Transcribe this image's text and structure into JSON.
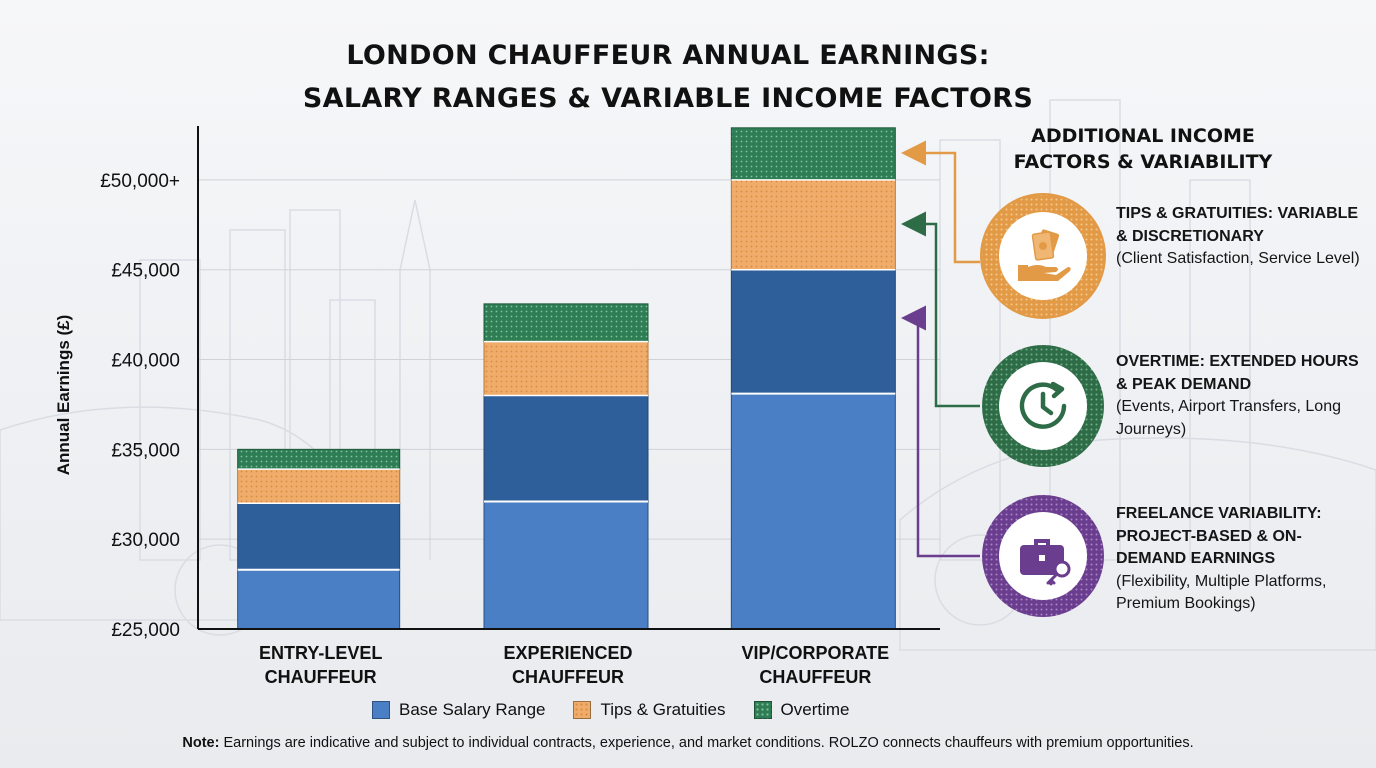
{
  "title_line1": "LONDON CHAUFFEUR ANNUAL EARNINGS:",
  "title_line2": "SALARY RANGES & VARIABLE INCOME FACTORS",
  "colors": {
    "base_light": "#4a7fc6",
    "base_dark": "#2f5f9a",
    "tips": "#efac6a",
    "overtime": "#2e7d55",
    "tips_accent": "#e29a46",
    "overtime_accent": "#2e6b47",
    "freelance_accent": "#6a3d8e"
  },
  "chart_data": {
    "type": "bar",
    "stacked": true,
    "categories": [
      [
        "ENTRY-LEVEL",
        "CHAUFFEUR"
      ],
      [
        "EXPERIENCED",
        "CHAUFFEUR"
      ],
      [
        "VIP/CORPORATE",
        "CHAUFFEUR"
      ]
    ],
    "ylabel": "Annual Earnings (£)",
    "ylim": [
      25000,
      53000
    ],
    "yticks": [
      {
        "value": 25000,
        "label": "£25,000"
      },
      {
        "value": 30000,
        "label": "£30,000"
      },
      {
        "value": 35000,
        "label": "£35,000"
      },
      {
        "value": 40000,
        "label": "£40,000"
      },
      {
        "value": 45000,
        "label": "£45,000"
      },
      {
        "value": 50000,
        "label": "£50,000+"
      }
    ],
    "grid": true,
    "series": [
      {
        "name": "Base Salary Range",
        "low": [
          28300,
          32100,
          38100
        ],
        "high": [
          32000,
          38000,
          45000
        ]
      },
      {
        "name": "Tips & Gratuities",
        "values": [
          1900,
          3000,
          5000
        ]
      },
      {
        "name": "Overtime",
        "values": [
          1100,
          2100,
          2900
        ]
      }
    ],
    "legend_position": "bottom"
  },
  "legend": [
    {
      "label": "Base Salary Range",
      "key": "base"
    },
    {
      "label": "Tips & Gratuities",
      "key": "tips"
    },
    {
      "label": "Overtime",
      "key": "overtime"
    }
  ],
  "side_panel": {
    "title": "ADDITIONAL INCOME FACTORS & VARIABILITY",
    "factors": [
      {
        "heading": "TIPS & GRATUITIES: VARIABLE & DISCRETIONARY",
        "detail": "(Client Satisfaction, Service Level)",
        "icon": "hand-money-icon"
      },
      {
        "heading": "OVERTIME: EXTENDED HOURS & PEAK DEMAND",
        "detail": "(Events, Airport Transfers, Long Journeys)",
        "icon": "clock-icon"
      },
      {
        "heading": "FREELANCE VARIABILITY: PROJECT-BASED & ON-DEMAND EARNINGS",
        "detail": "(Flexibility, Multiple Platforms, Premium Bookings)",
        "icon": "briefcase-key-icon"
      }
    ]
  },
  "note": {
    "label": "Note:",
    "text": " Earnings are indicative and subject to individual contracts, experience, and market conditions. ROLZO connects chauffeurs with premium opportunities."
  }
}
